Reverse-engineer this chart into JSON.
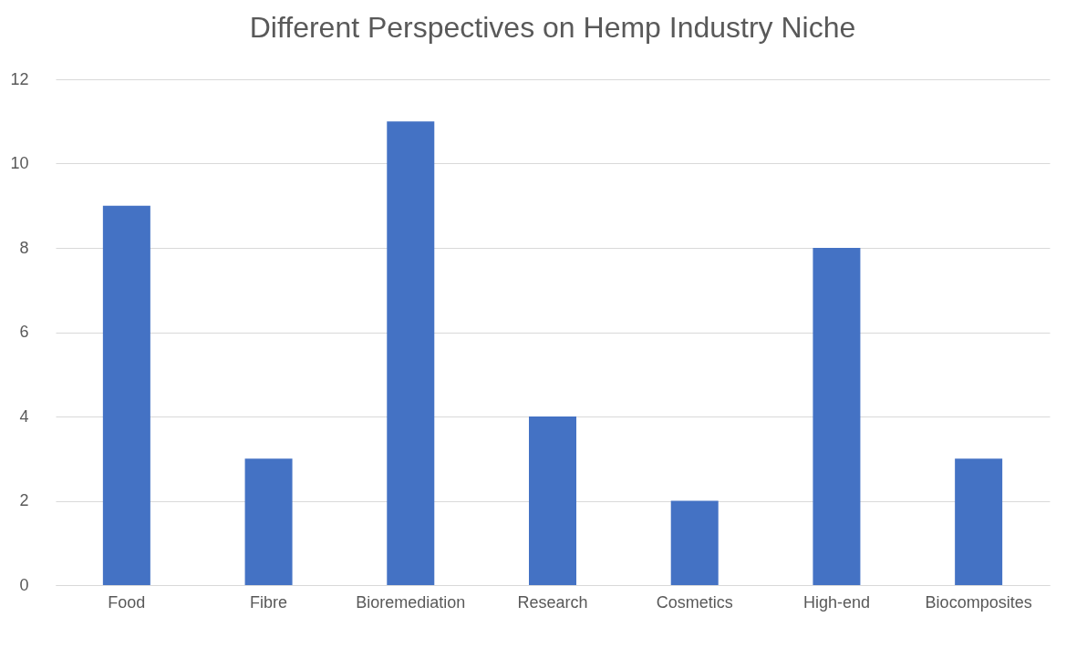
{
  "chart_data": {
    "type": "bar",
    "title": "Different Perspectives on Hemp Industry Niche",
    "categories": [
      "Food",
      "Fibre",
      "Bioremediation",
      "Research",
      "Cosmetics",
      "High-end",
      "Biocomposites"
    ],
    "values": [
      9,
      3,
      11,
      4,
      2,
      8,
      3
    ],
    "color": "#4472c4",
    "ylim": [
      0,
      12
    ],
    "yticks": [
      0,
      2,
      4,
      6,
      8,
      10,
      12
    ],
    "grid": "y"
  }
}
